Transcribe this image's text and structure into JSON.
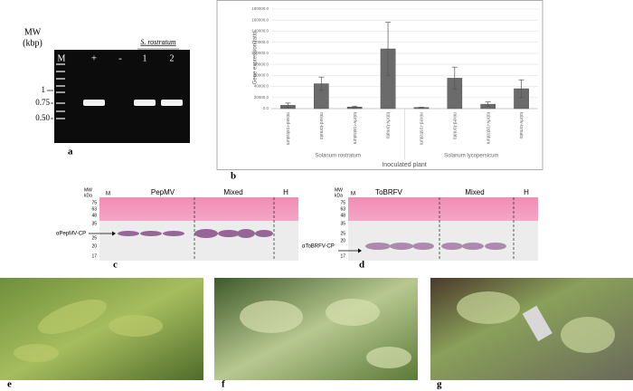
{
  "panels": {
    "a": {
      "label": "a",
      "mw_title": "MW",
      "mw_unit": "(kbp)",
      "lanes": [
        "M",
        "+",
        "-",
        "1",
        "2"
      ],
      "group_label": "S. rostratum",
      "markers": [
        "1",
        "0.75",
        "0.50"
      ]
    },
    "b": {
      "label": "b"
    },
    "c": {
      "label": "c",
      "mw_title": "MW",
      "mw_unit": "kDa",
      "lane_m": "M",
      "groups": [
        "PepMV",
        "Mixed",
        "H"
      ],
      "markers": [
        "75",
        "63",
        "48",
        "35",
        "25",
        "20",
        "17"
      ],
      "antibody": "αPepMV-CP"
    },
    "d": {
      "label": "d",
      "mw_title": "MW",
      "mw_unit": "kDa",
      "lane_m": "M",
      "groups": [
        "ToBRFV",
        "Mixed",
        "H"
      ],
      "markers": [
        "75",
        "63",
        "48",
        "35",
        "25",
        "20",
        "17"
      ],
      "antibody": "αToBRFV-CP"
    },
    "e": {
      "label": "e"
    },
    "f": {
      "label": "f"
    },
    "g": {
      "label": "g"
    }
  },
  "chart_data": {
    "type": "bar",
    "y_label": "Gene expression ratio",
    "x_label": "Inoculated plant",
    "groups": [
      "Solanum rostratum",
      "Solanum lycopersicum"
    ],
    "categories": [
      "mixed-rostratum",
      "mixed-tomato",
      "tobrfv-rostratum",
      "tobrfv-tomato",
      "mixed-rostratum",
      "mixed-tomato",
      "tobrfv-rostratum",
      "tobrfv-tomato"
    ],
    "values": [
      6000,
      45000,
      3000,
      108000,
      2000,
      55000,
      8000,
      36000
    ],
    "errors": [
      4000,
      12000,
      1500,
      48000,
      500,
      20000,
      4000,
      16000
    ],
    "color": "#6b6b6b",
    "ylim": [
      0,
      180000
    ],
    "yticks": [
      {
        "value": 0,
        "label": "0.0"
      },
      {
        "value": 20000,
        "label": "20000.0"
      },
      {
        "value": 40000,
        "label": "40000.0"
      },
      {
        "value": 60000,
        "label": "60000.0"
      },
      {
        "value": 80000,
        "label": "80000.0"
      },
      {
        "value": 100000,
        "label": "100000.0"
      },
      {
        "value": 120000,
        "label": "120000.0"
      },
      {
        "value": 140000,
        "label": "140000.0"
      },
      {
        "value": 160000,
        "label": "160000.0"
      },
      {
        "value": 180000,
        "label": "180000.0"
      }
    ],
    "grid": true
  }
}
